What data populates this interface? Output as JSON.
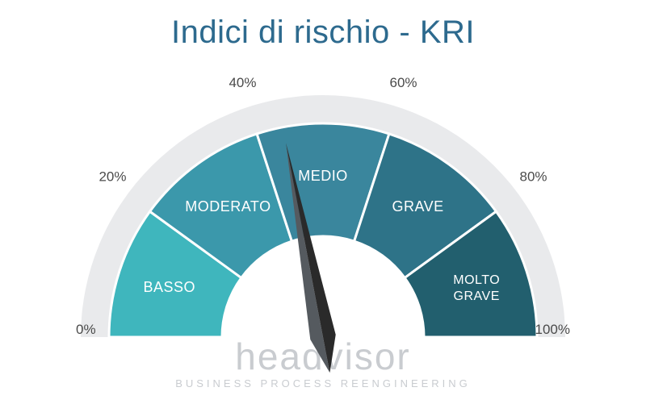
{
  "title": "Indici di rischio - KRI",
  "title_color": "#2d6a8e",
  "gauge": {
    "type": "gauge",
    "min": 0,
    "max": 100,
    "needle_value": 44,
    "segments": [
      {
        "label": "BASSO",
        "start": 0,
        "end": 20,
        "color": "#3fb6bd"
      },
      {
        "label": "MODERATO",
        "start": 20,
        "end": 40,
        "color": "#3b98ab"
      },
      {
        "label": "MEDIO",
        "start": 40,
        "end": 60,
        "color": "#3a869d"
      },
      {
        "label": "GRAVE",
        "start": 60,
        "end": 80,
        "color": "#2e7388"
      },
      {
        "label": "MOLTO GRAVE",
        "start": 80,
        "end": 100,
        "color": "#225f6e"
      }
    ],
    "ticks": [
      {
        "value": 0,
        "label": "0%"
      },
      {
        "value": 20,
        "label": "20%"
      },
      {
        "value": 40,
        "label": "40%"
      },
      {
        "value": 60,
        "label": "60%"
      },
      {
        "value": 80,
        "label": "80%"
      },
      {
        "value": 100,
        "label": "100%"
      }
    ],
    "outer_ring_color": "#e9eaec",
    "segment_border_color": "#ffffff",
    "needle_color": "#2a2a2a",
    "needle_highlight": "#555a5f",
    "inner_circle_color": "#ffffff",
    "background_color": "#ffffff",
    "tick_label_color": "#4a4a4a",
    "tick_label_fontsize": 17,
    "segment_label_color": "#ffffff",
    "segment_label_fontsize": 18,
    "radii": {
      "outer_ring": 300,
      "seg_outer": 265,
      "seg_inner": 125,
      "label_r": 200,
      "tick_r": 322
    }
  },
  "watermark": {
    "brand": "headvisor",
    "tagline": "BUSINESS PROCESS REENGINEERING",
    "color": "#c9ccd0"
  }
}
